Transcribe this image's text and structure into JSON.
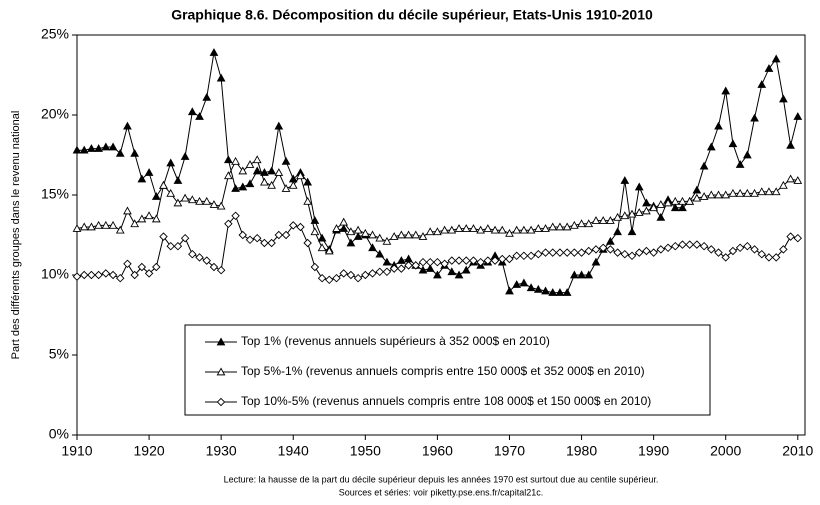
{
  "chart_data": {
    "type": "line",
    "title": "Graphique 8.6. Décomposition du décile supérieur, Etats-Unis 1910-2010",
    "ylabel": "Part des différents groupes dans le revenu national",
    "notes": [
      "Lecture: la hausse de la part du décile supérieur depuis les années 1970 est surtout due au centile supérieur.",
      "Sources et séries: voir piketty.pse.ens.fr/capital21c."
    ],
    "x": [
      1910,
      1911,
      1912,
      1913,
      1914,
      1915,
      1916,
      1917,
      1918,
      1919,
      1920,
      1921,
      1922,
      1923,
      1924,
      1925,
      1926,
      1927,
      1928,
      1929,
      1930,
      1931,
      1932,
      1933,
      1934,
      1935,
      1936,
      1937,
      1938,
      1939,
      1940,
      1941,
      1942,
      1943,
      1944,
      1945,
      1946,
      1947,
      1948,
      1949,
      1950,
      1951,
      1952,
      1953,
      1954,
      1955,
      1956,
      1957,
      1958,
      1959,
      1960,
      1961,
      1962,
      1963,
      1964,
      1965,
      1966,
      1967,
      1968,
      1969,
      1970,
      1971,
      1972,
      1973,
      1974,
      1975,
      1976,
      1977,
      1978,
      1979,
      1980,
      1981,
      1982,
      1983,
      1984,
      1985,
      1986,
      1987,
      1988,
      1989,
      1990,
      1991,
      1992,
      1993,
      1994,
      1995,
      1996,
      1997,
      1998,
      1999,
      2000,
      2001,
      2002,
      2003,
      2004,
      2005,
      2006,
      2007,
      2008,
      2009,
      2010
    ],
    "series": [
      {
        "name": "Top 1% (revenus annuels supérieurs à 352 000$ en 2010)",
        "color": "#000000",
        "marker": "filled-triangle",
        "values": [
          17.8,
          17.8,
          17.9,
          17.9,
          18.0,
          18.0,
          17.6,
          19.3,
          17.6,
          16.0,
          16.4,
          14.9,
          15.6,
          17.0,
          15.9,
          17.4,
          20.2,
          19.9,
          21.1,
          23.9,
          22.3,
          17.2,
          15.4,
          15.5,
          15.7,
          16.5,
          16.4,
          16.5,
          19.3,
          17.1,
          16.0,
          16.4,
          15.8,
          13.4,
          12.3,
          11.6,
          12.8,
          12.9,
          12.0,
          12.4,
          12.5,
          11.7,
          11.3,
          10.8,
          10.6,
          10.9,
          11.0,
          10.6,
          10.3,
          10.4,
          10.0,
          10.6,
          10.2,
          10.0,
          10.3,
          10.8,
          10.6,
          10.8,
          11.2,
          10.8,
          9.0,
          9.4,
          9.5,
          9.2,
          9.1,
          9.0,
          8.9,
          8.9,
          8.9,
          10.0,
          10.0,
          10.0,
          10.8,
          11.6,
          12.1,
          12.7,
          15.9,
          12.7,
          15.5,
          14.5,
          14.3,
          13.6,
          14.7,
          14.2,
          14.2,
          14.6,
          15.3,
          16.8,
          18.0,
          19.3,
          21.5,
          18.2,
          16.9,
          17.5,
          19.8,
          21.9,
          22.9,
          23.5,
          21.0,
          18.1,
          19.9
        ]
      },
      {
        "name": "Top 5%-1% (revenus annuels compris entre 150 000$ et 352 000$ en 2010)",
        "color": "#000000",
        "marker": "open-triangle",
        "values": [
          12.9,
          13.0,
          13.0,
          13.1,
          13.1,
          13.1,
          12.8,
          14.0,
          13.2,
          13.5,
          13.7,
          13.5,
          15.6,
          15.1,
          14.5,
          14.8,
          14.7,
          14.6,
          14.6,
          14.4,
          14.3,
          16.2,
          17.1,
          16.5,
          16.9,
          17.2,
          15.8,
          15.6,
          16.4,
          15.4,
          15.6,
          16.2,
          14.6,
          12.7,
          11.7,
          11.5,
          12.9,
          13.3,
          12.7,
          12.8,
          12.6,
          12.5,
          12.3,
          12.1,
          12.4,
          12.5,
          12.5,
          12.5,
          12.4,
          12.7,
          12.7,
          12.8,
          12.8,
          12.9,
          12.9,
          12.9,
          12.8,
          12.9,
          12.8,
          12.8,
          12.6,
          12.8,
          12.8,
          12.8,
          12.9,
          12.9,
          13.0,
          13.0,
          13.0,
          13.1,
          13.2,
          13.2,
          13.4,
          13.4,
          13.4,
          13.6,
          13.7,
          13.8,
          13.9,
          14.0,
          14.2,
          14.4,
          14.5,
          14.6,
          14.6,
          14.6,
          14.8,
          14.9,
          15.0,
          15.0,
          15.0,
          15.1,
          15.1,
          15.1,
          15.1,
          15.2,
          15.2,
          15.2,
          15.6,
          16.0,
          15.9
        ]
      },
      {
        "name": "Top 10%-5% (revenus annuels compris entre 108 000$ et 150 000$ en 2010)",
        "color": "#000000",
        "marker": "open-diamond",
        "values": [
          9.9,
          10.0,
          10.0,
          10.0,
          10.1,
          10.0,
          9.8,
          10.7,
          10.0,
          10.5,
          10.1,
          10.5,
          12.4,
          11.8,
          11.8,
          12.3,
          11.3,
          11.1,
          10.9,
          10.5,
          10.3,
          13.2,
          13.7,
          12.5,
          12.2,
          12.3,
          12.0,
          12.0,
          12.5,
          12.5,
          13.1,
          13.0,
          12.0,
          10.5,
          9.8,
          9.7,
          9.8,
          10.1,
          10.0,
          9.8,
          10.0,
          10.1,
          10.2,
          10.2,
          10.4,
          10.4,
          10.6,
          10.6,
          10.8,
          10.8,
          10.8,
          10.7,
          10.9,
          10.9,
          10.9,
          10.9,
          10.8,
          10.9,
          10.9,
          11.0,
          11.0,
          11.2,
          11.2,
          11.2,
          11.3,
          11.4,
          11.4,
          11.4,
          11.4,
          11.4,
          11.4,
          11.5,
          11.6,
          11.7,
          11.6,
          11.4,
          11.3,
          11.2,
          11.4,
          11.5,
          11.4,
          11.6,
          11.7,
          11.8,
          11.9,
          11.9,
          11.9,
          11.8,
          11.6,
          11.4,
          11.1,
          11.5,
          11.7,
          11.8,
          11.6,
          11.3,
          11.1,
          11.1,
          11.6,
          12.4,
          12.3
        ]
      }
    ],
    "xlim": [
      1910,
      2011
    ],
    "xticks": [
      1910,
      1920,
      1930,
      1940,
      1950,
      1960,
      1970,
      1980,
      1990,
      2000,
      2010
    ],
    "ylim": [
      0,
      25
    ],
    "yticks": [
      {
        "value": 0,
        "label": "0%"
      },
      {
        "value": 5,
        "label": "5%"
      },
      {
        "value": 10,
        "label": "10%"
      },
      {
        "value": 15,
        "label": "15%"
      },
      {
        "value": 20,
        "label": "20%"
      },
      {
        "value": 25,
        "label": "25%"
      }
    ],
    "grid": false,
    "legend": "bottom-center"
  }
}
